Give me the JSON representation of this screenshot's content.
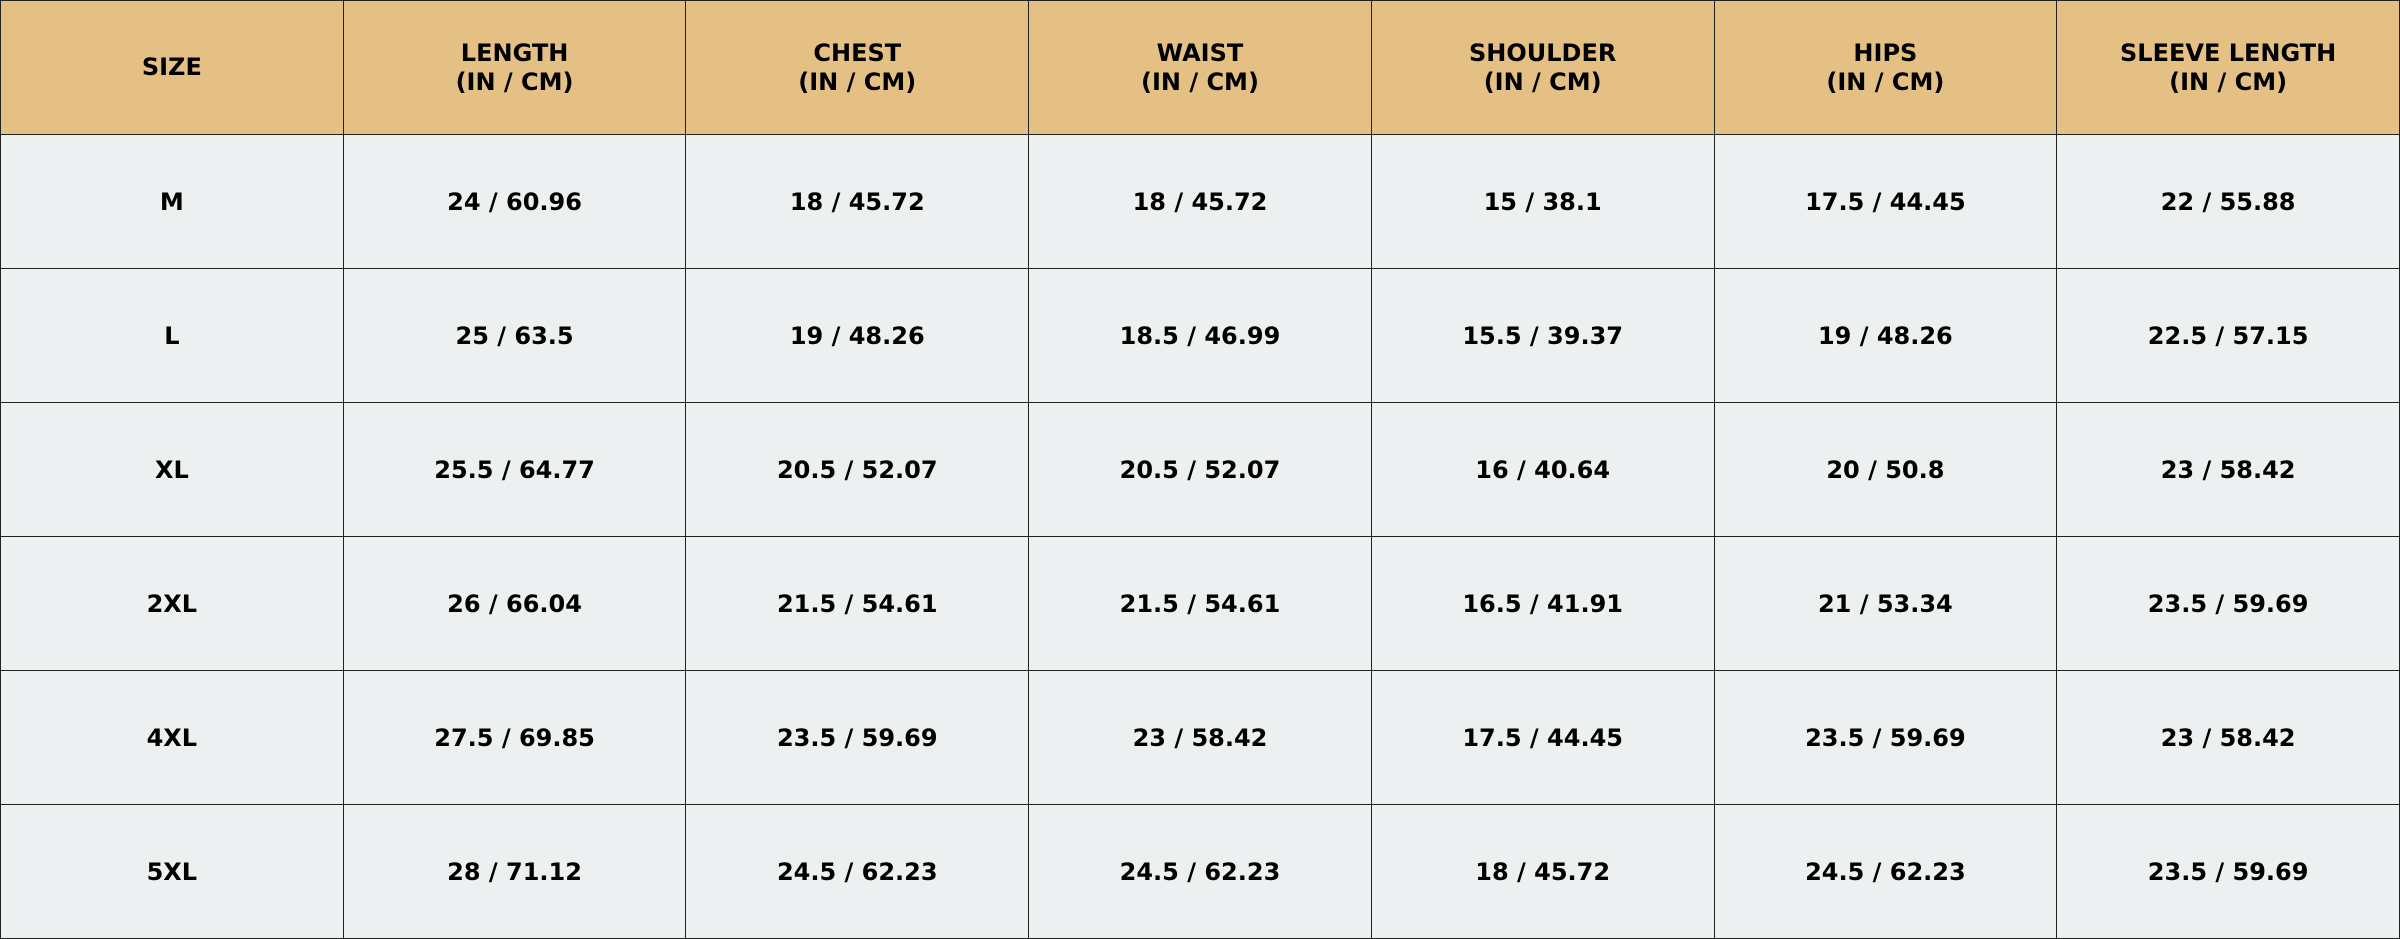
{
  "table": {
    "header_color": "#e4c084",
    "row_color": "#edf0f1",
    "columns": [
      {
        "title": "SIZE",
        "unit": ""
      },
      {
        "title": "LENGTH",
        "unit": "(IN / CM)"
      },
      {
        "title": "CHEST",
        "unit": "(IN / CM)"
      },
      {
        "title": "WAIST",
        "unit": "(IN / CM)"
      },
      {
        "title": "SHOULDER",
        "unit": "(IN / CM)"
      },
      {
        "title": "HIPS",
        "unit": "(IN / CM)"
      },
      {
        "title": "SLEEVE LENGTH",
        "unit": "(IN / CM)"
      }
    ],
    "rows": [
      [
        "M",
        "24 / 60.96",
        "18 / 45.72",
        "18 / 45.72",
        "15 / 38.1",
        "17.5 / 44.45",
        "22 / 55.88"
      ],
      [
        "L",
        "25 / 63.5",
        "19 / 48.26",
        "18.5 / 46.99",
        "15.5 / 39.37",
        "19 / 48.26",
        "22.5 / 57.15"
      ],
      [
        "XL",
        "25.5 / 64.77",
        "20.5 / 52.07",
        "20.5 / 52.07",
        "16 / 40.64",
        "20 / 50.8",
        "23 / 58.42"
      ],
      [
        "2XL",
        "26 / 66.04",
        "21.5 / 54.61",
        "21.5 / 54.61",
        "16.5 / 41.91",
        "21 / 53.34",
        "23.5 / 59.69"
      ],
      [
        "4XL",
        "27.5 / 69.85",
        "23.5 / 59.69",
        "23 / 58.42",
        "17.5 / 44.45",
        "23.5 / 59.69",
        "23 / 58.42"
      ],
      [
        "5XL",
        "28 / 71.12",
        "24.5 / 62.23",
        "24.5 / 62.23",
        "18 / 45.72",
        "24.5 / 62.23",
        "23.5 / 59.69"
      ]
    ]
  }
}
